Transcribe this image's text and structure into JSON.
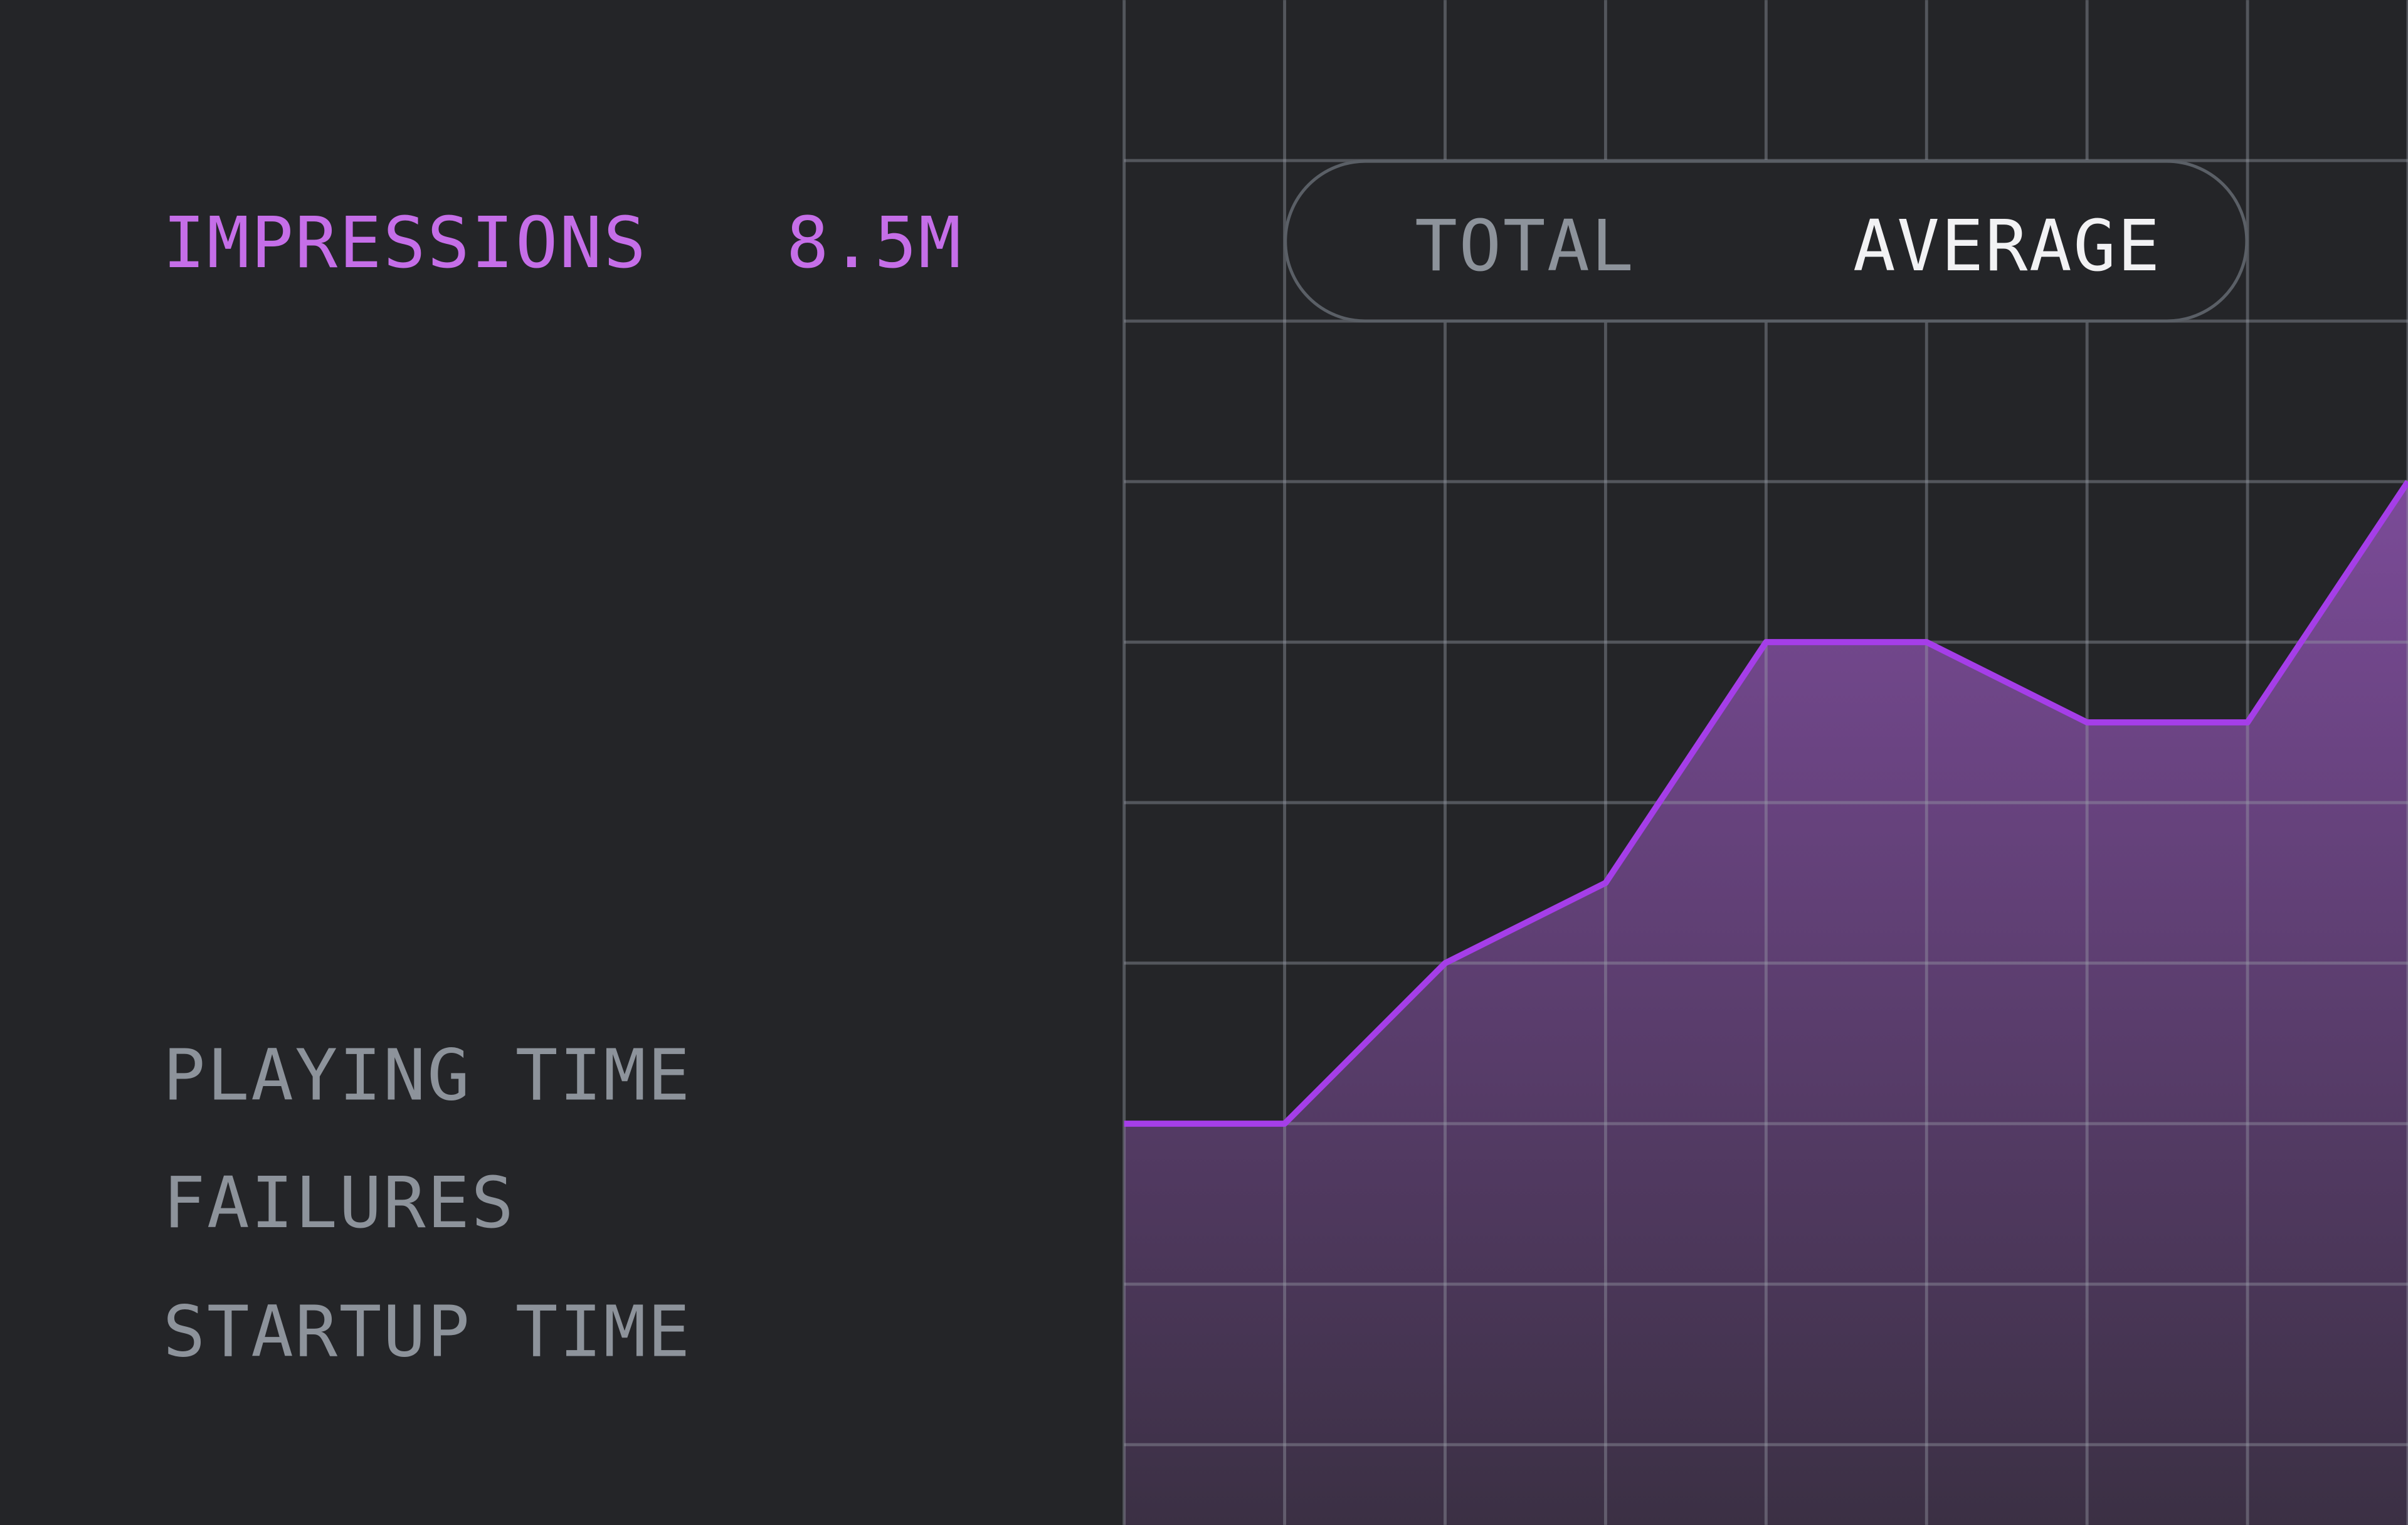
{
  "metric": {
    "label": "IMPRESSIONS",
    "value": "8.5M"
  },
  "metrics": [
    "PLAYING TIME",
    "FAILURES",
    "STARTUP TIME"
  ],
  "toggle": {
    "options": [
      "TOTAL",
      "AVERAGE"
    ]
  },
  "chart_data": {
    "type": "area",
    "x": [
      0,
      1,
      2,
      3,
      4,
      5,
      6,
      7,
      8
    ],
    "series": [
      {
        "color": "#a53ee8",
        "values": [
          2,
          2,
          3,
          3.5,
          5,
          5,
          4.5,
          4.5,
          6
        ]
      }
    ],
    "xlim": [
      0,
      8
    ],
    "ylim": [
      -0.5,
      9
    ],
    "xticks": [
      0,
      1,
      2,
      3,
      4,
      5,
      6,
      7,
      8
    ],
    "yticks": [
      0,
      1,
      2,
      3,
      4,
      5,
      6,
      7,
      8
    ],
    "grid": true
  }
}
